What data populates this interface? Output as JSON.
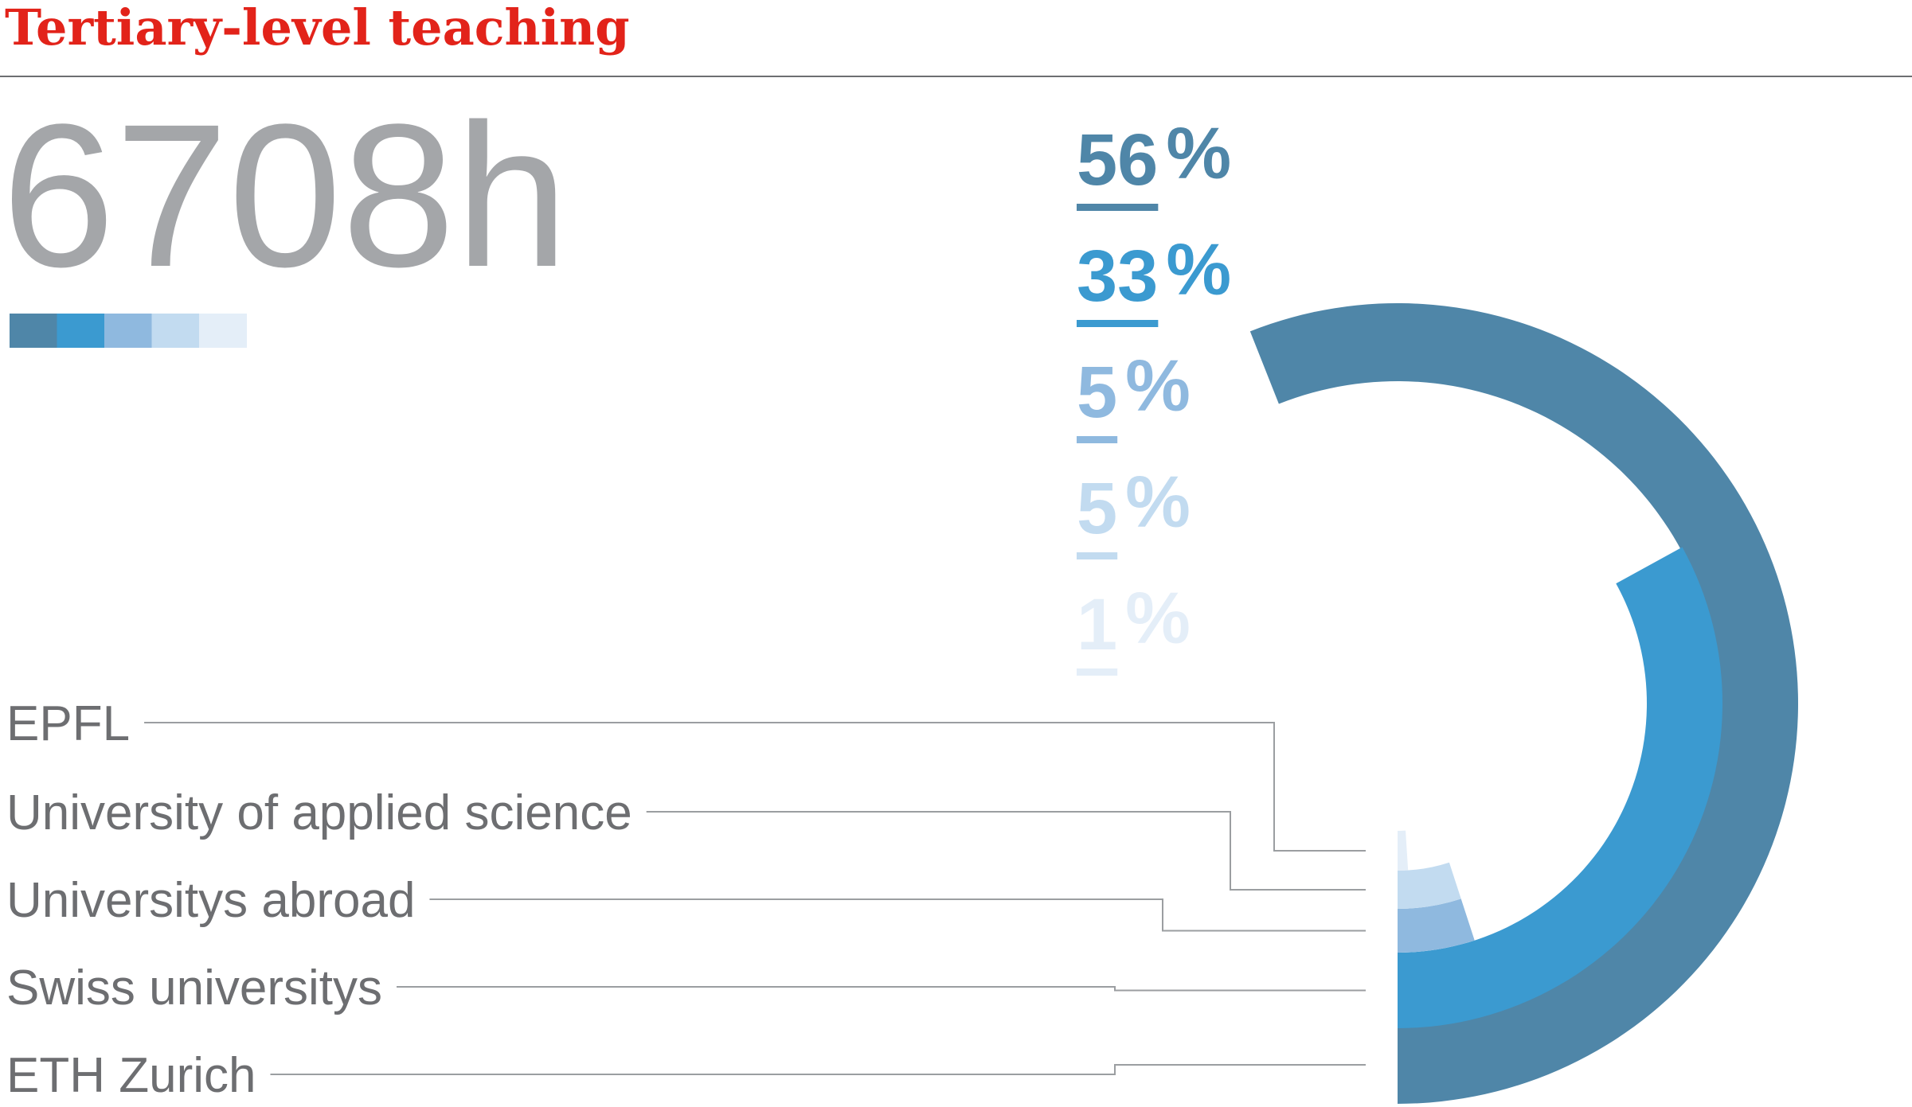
{
  "chart_data": {
    "type": "donut",
    "title": "Tertiary-level teaching",
    "total": "6708h",
    "categories": [
      "ETH Zurich",
      "Swiss universitys",
      "Universitys abroad",
      "University of applied science",
      "EPFL"
    ],
    "values": [
      56,
      33,
      5,
      5,
      1
    ],
    "labels": [
      "56",
      "33",
      "5",
      "5",
      "1"
    ],
    "unit": "%",
    "colors": [
      "#4f86a8",
      "#3b9ad0",
      "#8fb9df",
      "#c2dbf0",
      "#e4eef8"
    ],
    "legend_order": [
      "EPFL",
      "University of applied science",
      "Universitys abroad",
      "Swiss universitys",
      "ETH Zurich"
    ]
  }
}
